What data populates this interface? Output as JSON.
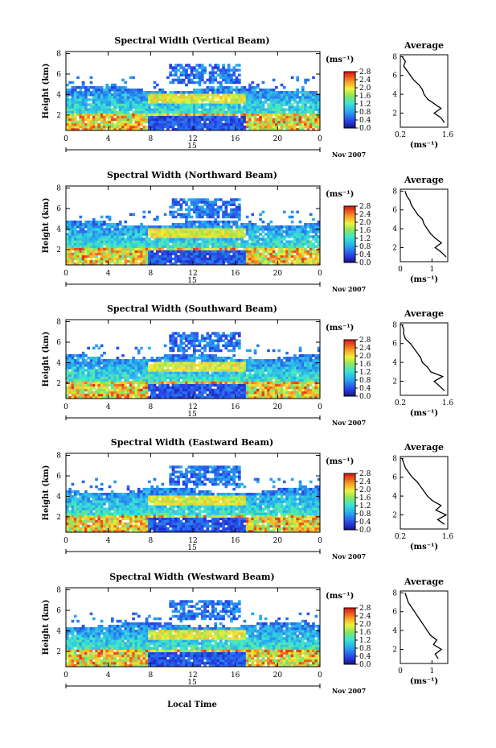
{
  "figure": {
    "xlabel": "Local Time",
    "colorbar_unit": "(ms⁻¹)",
    "colorbar_ticks": [
      "0.0",
      "0.4",
      "0.8",
      "1.2",
      "1.6",
      "2.0",
      "2.4",
      "2.8"
    ],
    "ylabel": "Height (km)",
    "y_ticks": [
      "2",
      "4",
      "6",
      "8"
    ],
    "x_ticks": [
      "0",
      "4",
      "8",
      "12",
      "16",
      "20",
      "0"
    ],
    "day": "15",
    "month_label": "Nov 2007",
    "avg_title": "Average",
    "avg_xlabel": "(ms⁻¹)",
    "avg_y_ticks": [
      "2",
      "4",
      "6",
      "8"
    ]
  },
  "chart_data": [
    {
      "type": "heatmap",
      "title": "Spectral Width (Vertical Beam)",
      "xlabel": "",
      "ylabel": "Height (km)",
      "xlim": [
        0,
        24
      ],
      "ylim": [
        0.5,
        8.2
      ],
      "colorbar_range": [
        0.0,
        2.8
      ],
      "avg_profile": {
        "xlim": [
          0.2,
          1.6
        ],
        "x_tick_labels": [
          "0.2",
          "1.6"
        ],
        "height": [
          1.0,
          1.5,
          2.0,
          2.5,
          3.0,
          3.5,
          4.0,
          4.5,
          5.0,
          5.5,
          6.0,
          6.5,
          7.0,
          7.5,
          8.0
        ],
        "value": [
          1.5,
          1.4,
          1.2,
          1.4,
          1.2,
          1.0,
          0.9,
          0.85,
          0.75,
          0.6,
          0.5,
          0.4,
          0.3,
          0.35,
          0.25
        ]
      }
    },
    {
      "type": "heatmap",
      "title": "Spectral Width (Northward Beam)",
      "xlabel": "",
      "ylabel": "Height (km)",
      "xlim": [
        0,
        24
      ],
      "ylim": [
        0.5,
        8.2
      ],
      "colorbar_range": [
        0.0,
        2.8
      ],
      "avg_profile": {
        "xlim": [
          0,
          1.5
        ],
        "x_tick_labels": [
          "0",
          "1"
        ],
        "height": [
          1.0,
          1.5,
          2.0,
          2.5,
          3.0,
          3.5,
          4.0,
          4.5,
          5.0,
          5.5,
          6.0,
          6.5,
          7.0,
          7.5,
          8.0
        ],
        "value": [
          1.45,
          1.3,
          1.1,
          1.3,
          1.1,
          0.95,
          0.85,
          0.75,
          0.7,
          0.55,
          0.45,
          0.35,
          0.3,
          0.2,
          0.15
        ]
      }
    },
    {
      "type": "heatmap",
      "title": "Spectral Width (Southward Beam)",
      "xlabel": "",
      "ylabel": "Height (km)",
      "xlim": [
        0,
        24
      ],
      "ylim": [
        0.5,
        8.2
      ],
      "colorbar_range": [
        0.0,
        2.8
      ],
      "avg_profile": {
        "xlim": [
          0.2,
          1.6
        ],
        "x_tick_labels": [
          "0.2",
          "1.6"
        ],
        "height": [
          1.0,
          1.5,
          2.0,
          2.5,
          3.0,
          3.5,
          4.0,
          4.5,
          5.0,
          5.5,
          6.0,
          6.5,
          7.0,
          7.5,
          8.0
        ],
        "value": [
          1.5,
          1.35,
          1.2,
          1.45,
          1.1,
          1.0,
          0.85,
          0.8,
          0.7,
          0.6,
          0.5,
          0.35,
          0.3,
          0.3,
          0.25
        ]
      }
    },
    {
      "type": "heatmap",
      "title": "Spectral Width (Eastward Beam)",
      "xlabel": "",
      "ylabel": "Height (km)",
      "xlim": [
        0,
        24
      ],
      "ylim": [
        0.5,
        8.2
      ],
      "colorbar_range": [
        0.0,
        2.8
      ],
      "avg_profile": {
        "xlim": [
          0.2,
          1.6
        ],
        "x_tick_labels": [
          "0.2",
          "1.6"
        ],
        "height": [
          1.0,
          1.5,
          2.0,
          2.5,
          3.0,
          3.5,
          4.0,
          4.5,
          5.0,
          5.5,
          6.0,
          6.5,
          7.0,
          7.5,
          8.0
        ],
        "value": [
          1.5,
          1.3,
          1.55,
          1.25,
          1.4,
          1.15,
          1.0,
          0.9,
          0.8,
          0.7,
          0.55,
          0.45,
          0.35,
          0.3,
          0.25
        ]
      }
    },
    {
      "type": "heatmap",
      "title": "Spectral Width (Westward Beam)",
      "xlabel": "Local Time",
      "ylabel": "Height (km)",
      "xlim": [
        0,
        24
      ],
      "ylim": [
        0.5,
        8.2
      ],
      "colorbar_range": [
        0.0,
        2.8
      ],
      "avg_profile": {
        "xlim": [
          0,
          1.5
        ],
        "x_tick_labels": [
          "0",
          "1"
        ],
        "height": [
          1.0,
          1.5,
          2.0,
          2.5,
          3.0,
          3.5,
          4.0,
          4.5,
          5.0,
          5.5,
          6.0,
          6.5,
          7.0,
          7.5,
          8.0
        ],
        "value": [
          1.2,
          1.1,
          1.3,
          1.05,
          1.15,
          0.95,
          0.85,
          0.75,
          0.65,
          0.55,
          0.45,
          0.35,
          0.25,
          0.2,
          0.15
        ]
      }
    }
  ]
}
